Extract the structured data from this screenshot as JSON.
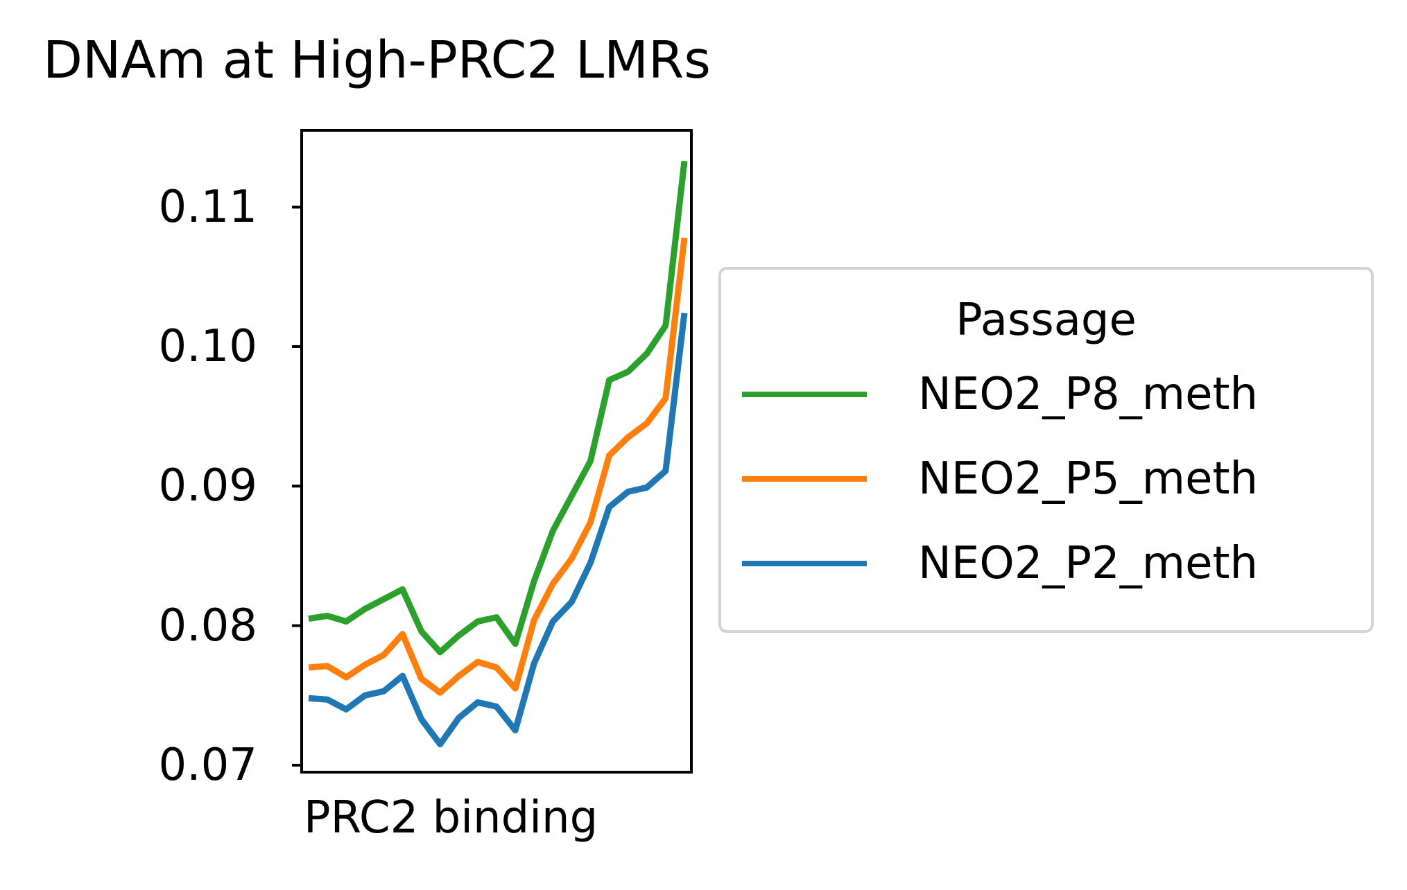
{
  "chart_data": {
    "type": "line",
    "title": "DNAm at High-PRC2 LMRs",
    "xlabel": "PRC2 binding",
    "ylabel": "",
    "ylim": [
      0.0695,
      0.1155
    ],
    "yticks": [
      "0.07",
      "0.08",
      "0.09",
      "0.10",
      "0.11"
    ],
    "legend": {
      "title": "Passage",
      "placement": "right"
    },
    "grid": false,
    "x": [
      0,
      5,
      10,
      15,
      20,
      25,
      30,
      35,
      40,
      45,
      50,
      55,
      60,
      65,
      70,
      75,
      80,
      85,
      90,
      95,
      100
    ],
    "series": [
      {
        "name": "NEO2_P8_meth",
        "color": "#2ca02c",
        "values": [
          0.0805,
          0.0807,
          0.0803,
          0.0812,
          0.0819,
          0.0826,
          0.0796,
          0.0781,
          0.0793,
          0.0803,
          0.0806,
          0.0787,
          0.0832,
          0.0868,
          0.0893,
          0.0918,
          0.0976,
          0.0982,
          0.0995,
          0.1015,
          0.1133
        ]
      },
      {
        "name": "NEO2_P5_meth",
        "color": "#ff7f0e",
        "values": [
          0.077,
          0.0771,
          0.0763,
          0.0772,
          0.0779,
          0.0794,
          0.0762,
          0.0752,
          0.0764,
          0.0774,
          0.077,
          0.0755,
          0.0804,
          0.083,
          0.0848,
          0.0874,
          0.0922,
          0.0935,
          0.0945,
          0.0963,
          0.1078
        ]
      },
      {
        "name": "NEO2_P2_meth",
        "color": "#1f77b4",
        "values": [
          0.0748,
          0.0747,
          0.074,
          0.075,
          0.0753,
          0.0764,
          0.0733,
          0.0715,
          0.0734,
          0.0745,
          0.0742,
          0.0725,
          0.0773,
          0.0803,
          0.0817,
          0.0845,
          0.0885,
          0.0896,
          0.0899,
          0.0911,
          0.1024
        ]
      }
    ]
  }
}
